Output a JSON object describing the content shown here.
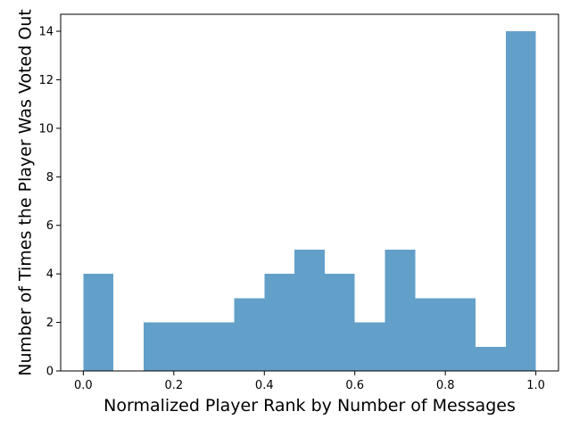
{
  "chart_data": {
    "type": "bar",
    "title": "",
    "xlabel": "Normalized Player Rank by Number of Messages",
    "ylabel": "Number of Times the Player Was Voted Out",
    "xlim": [
      -0.05,
      1.05
    ],
    "ylim": [
      0,
      14.7
    ],
    "bin_edges": [
      0.0,
      0.0667,
      0.1333,
      0.2,
      0.2667,
      0.3333,
      0.4,
      0.4667,
      0.5333,
      0.6,
      0.6667,
      0.7333,
      0.8,
      0.8667,
      0.9333,
      1.0
    ],
    "values": [
      4,
      0,
      2,
      2,
      2,
      3,
      4,
      5,
      4,
      2,
      5,
      3,
      3,
      1,
      14
    ],
    "x_ticks": [
      0.0,
      0.2,
      0.4,
      0.6,
      0.8,
      1.0
    ],
    "x_tick_labels": [
      "0.0",
      "0.2",
      "0.4",
      "0.6",
      "0.8",
      "1.0"
    ],
    "y_ticks": [
      0,
      2,
      4,
      6,
      8,
      10,
      12,
      14
    ],
    "y_tick_labels": [
      "0",
      "2",
      "4",
      "6",
      "8",
      "10",
      "12",
      "14"
    ],
    "bar_color": "#1f77b4",
    "bar_opacity": 0.7,
    "grid": false,
    "legend": "none"
  }
}
